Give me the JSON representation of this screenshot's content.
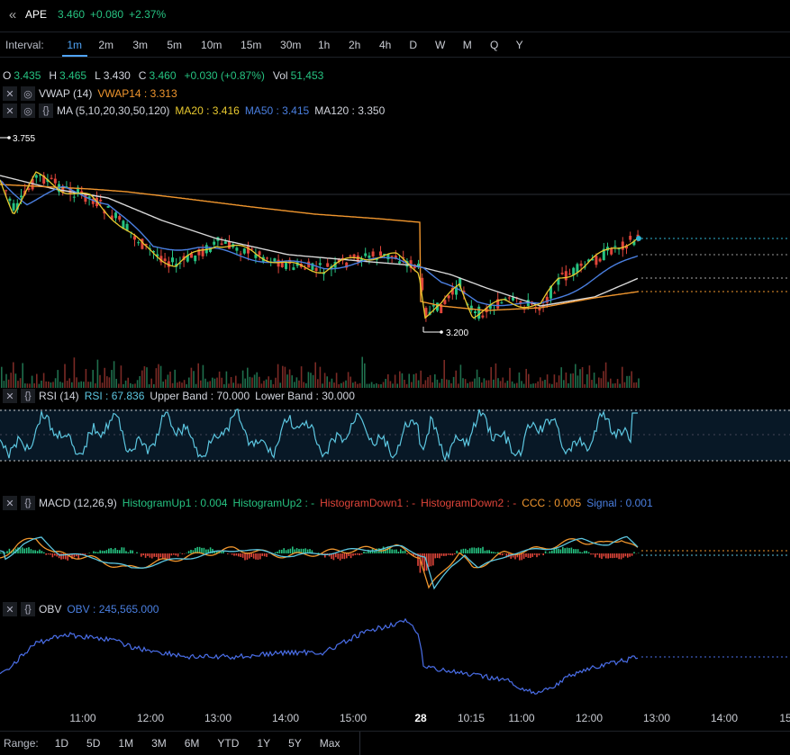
{
  "header": {
    "back_icon": "double-chevron-left-icon",
    "symbol": "APE",
    "price": "3.460",
    "change": "+0.080",
    "change_pct": "+2.37%"
  },
  "interval": {
    "label": "Interval:",
    "options": [
      "1m",
      "2m",
      "3m",
      "5m",
      "10m",
      "15m",
      "30m",
      "1h",
      "2h",
      "4h",
      "D",
      "W",
      "M",
      "Q",
      "Y"
    ],
    "active": "1m"
  },
  "ohlc": {
    "o_label": "O",
    "o": "3.435",
    "h_label": "H",
    "h": "3.465",
    "l_label": "L",
    "l": "3.430",
    "c_label": "C",
    "c": "3.460",
    "chg": "+0.030 (+0.87%)",
    "vol_label": "Vol",
    "vol": "51,453"
  },
  "vwap": {
    "name": "VWAP (14)",
    "value": "VWAP14 : 3.313"
  },
  "ma": {
    "name": "MA (5,10,20,30,50,120)",
    "ma20": "MA20 : 3.416",
    "ma50": "MA50 : 3.415",
    "ma120": "MA120 : 3.350"
  },
  "price_chart": {
    "high_label": "3.755",
    "low_label": "3.200"
  },
  "rsi": {
    "name": "RSI (14)",
    "value": "RSI : 67.836",
    "upper": "Upper Band : 70.000",
    "lower": "Lower Band : 30.000"
  },
  "macd": {
    "name": "MACD (12,26,9)",
    "hu1": "HistogramUp1 : 0.004",
    "hu2": "HistogramUp2 : -",
    "hd1": "HistogramDown1 : -",
    "hd2": "HistogramDown2 : -",
    "ccc": "CCC : 0.005",
    "signal": "Signal : 0.001"
  },
  "obv": {
    "name": "OBV",
    "value": "OBV : 245,565.000"
  },
  "time_axis": [
    "11:00",
    "12:00",
    "13:00",
    "14:00",
    "15:00",
    "28",
    "10:15",
    "11:00",
    "12:00",
    "13:00",
    "14:00",
    "15"
  ],
  "range": {
    "label": "Range:",
    "options": [
      "1D",
      "5D",
      "1M",
      "3M",
      "6M",
      "YTD",
      "1Y",
      "5Y",
      "Max"
    ]
  },
  "colors": {
    "up": "#26c281",
    "down": "#e0453a",
    "ma_yellow": "#e8c92f",
    "ma_blue": "#4a7fe0",
    "ma_white": "#d8d8d8",
    "vwap_orange": "#f0962e",
    "rsi": "#5cc6e0",
    "obv": "#4a6ee8"
  }
}
